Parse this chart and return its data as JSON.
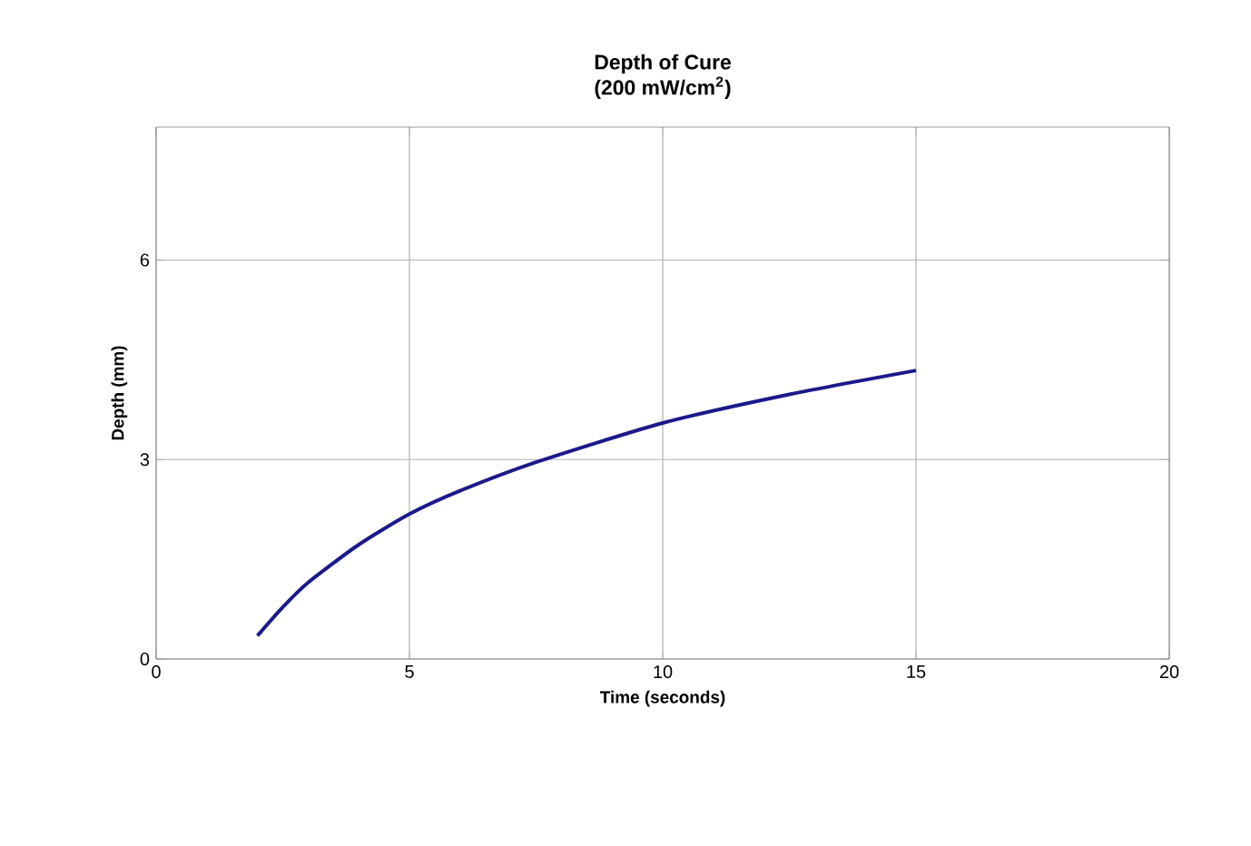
{
  "chart_data": {
    "type": "line",
    "title": "Depth of Cure",
    "subtitle": "(200 mW/cm$^{2}$)",
    "xlabel": "Time (seconds)",
    "ylabel": "Depth (mm)",
    "xlim": [
      0,
      20
    ],
    "xticks": [
      0,
      5,
      10,
      15,
      20
    ],
    "ylim": [
      0,
      8
    ],
    "yticks": [
      0,
      3,
      6
    ],
    "grid": true,
    "marker": "none",
    "line_style": "solid",
    "series": [
      {
        "color": "#1a1a8c",
        "x": [
          2,
          2.5,
          3,
          4,
          5,
          6,
          7.5,
          10,
          12.5,
          15
        ],
        "values": [
          0.35,
          0.78,
          1.15,
          1.72,
          2.18,
          2.53,
          2.96,
          3.55,
          3.98,
          4.34
        ]
      }
    ]
  }
}
